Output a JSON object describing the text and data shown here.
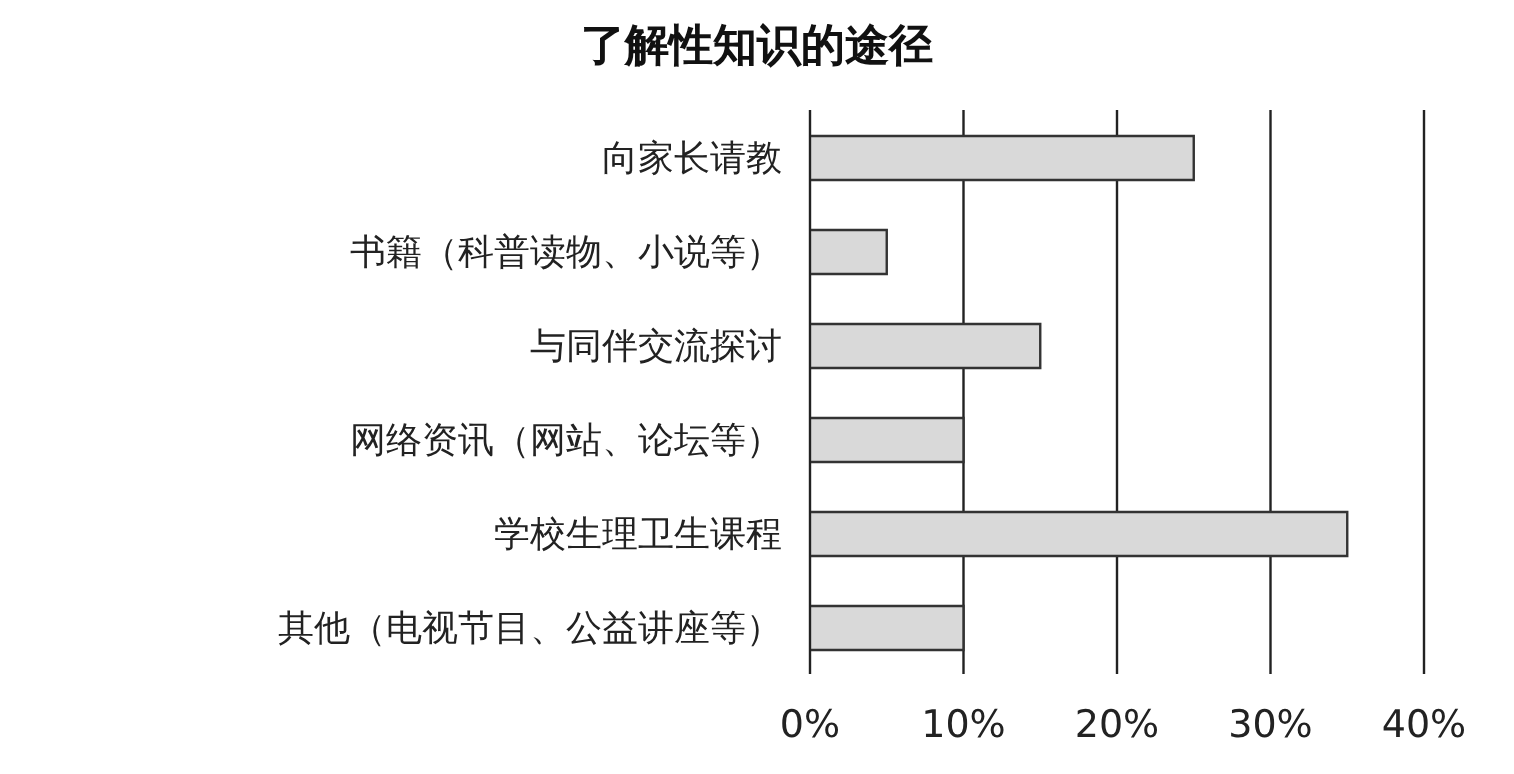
{
  "chart_data": {
    "type": "bar",
    "orientation": "horizontal",
    "title": "了解性知识的途径",
    "categories": [
      "向家长请教",
      "书籍（科普读物、小说等）",
      "与同伴交流探讨",
      "网络资讯（网站、论坛等）",
      "学校生理卫生课程",
      "其他（电视节目、公益讲座等）"
    ],
    "values": [
      25,
      5,
      15,
      10,
      35,
      10
    ],
    "color": "#d9d9d9",
    "xlim": [
      0,
      40
    ],
    "xticks": [
      {
        "value": 0,
        "label": "0%"
      },
      {
        "value": 10,
        "label": "10%"
      },
      {
        "value": 20,
        "label": "20%"
      },
      {
        "value": 30,
        "label": "30%"
      },
      {
        "value": 40,
        "label": "40%"
      }
    ],
    "grid": "x",
    "legend": false
  }
}
